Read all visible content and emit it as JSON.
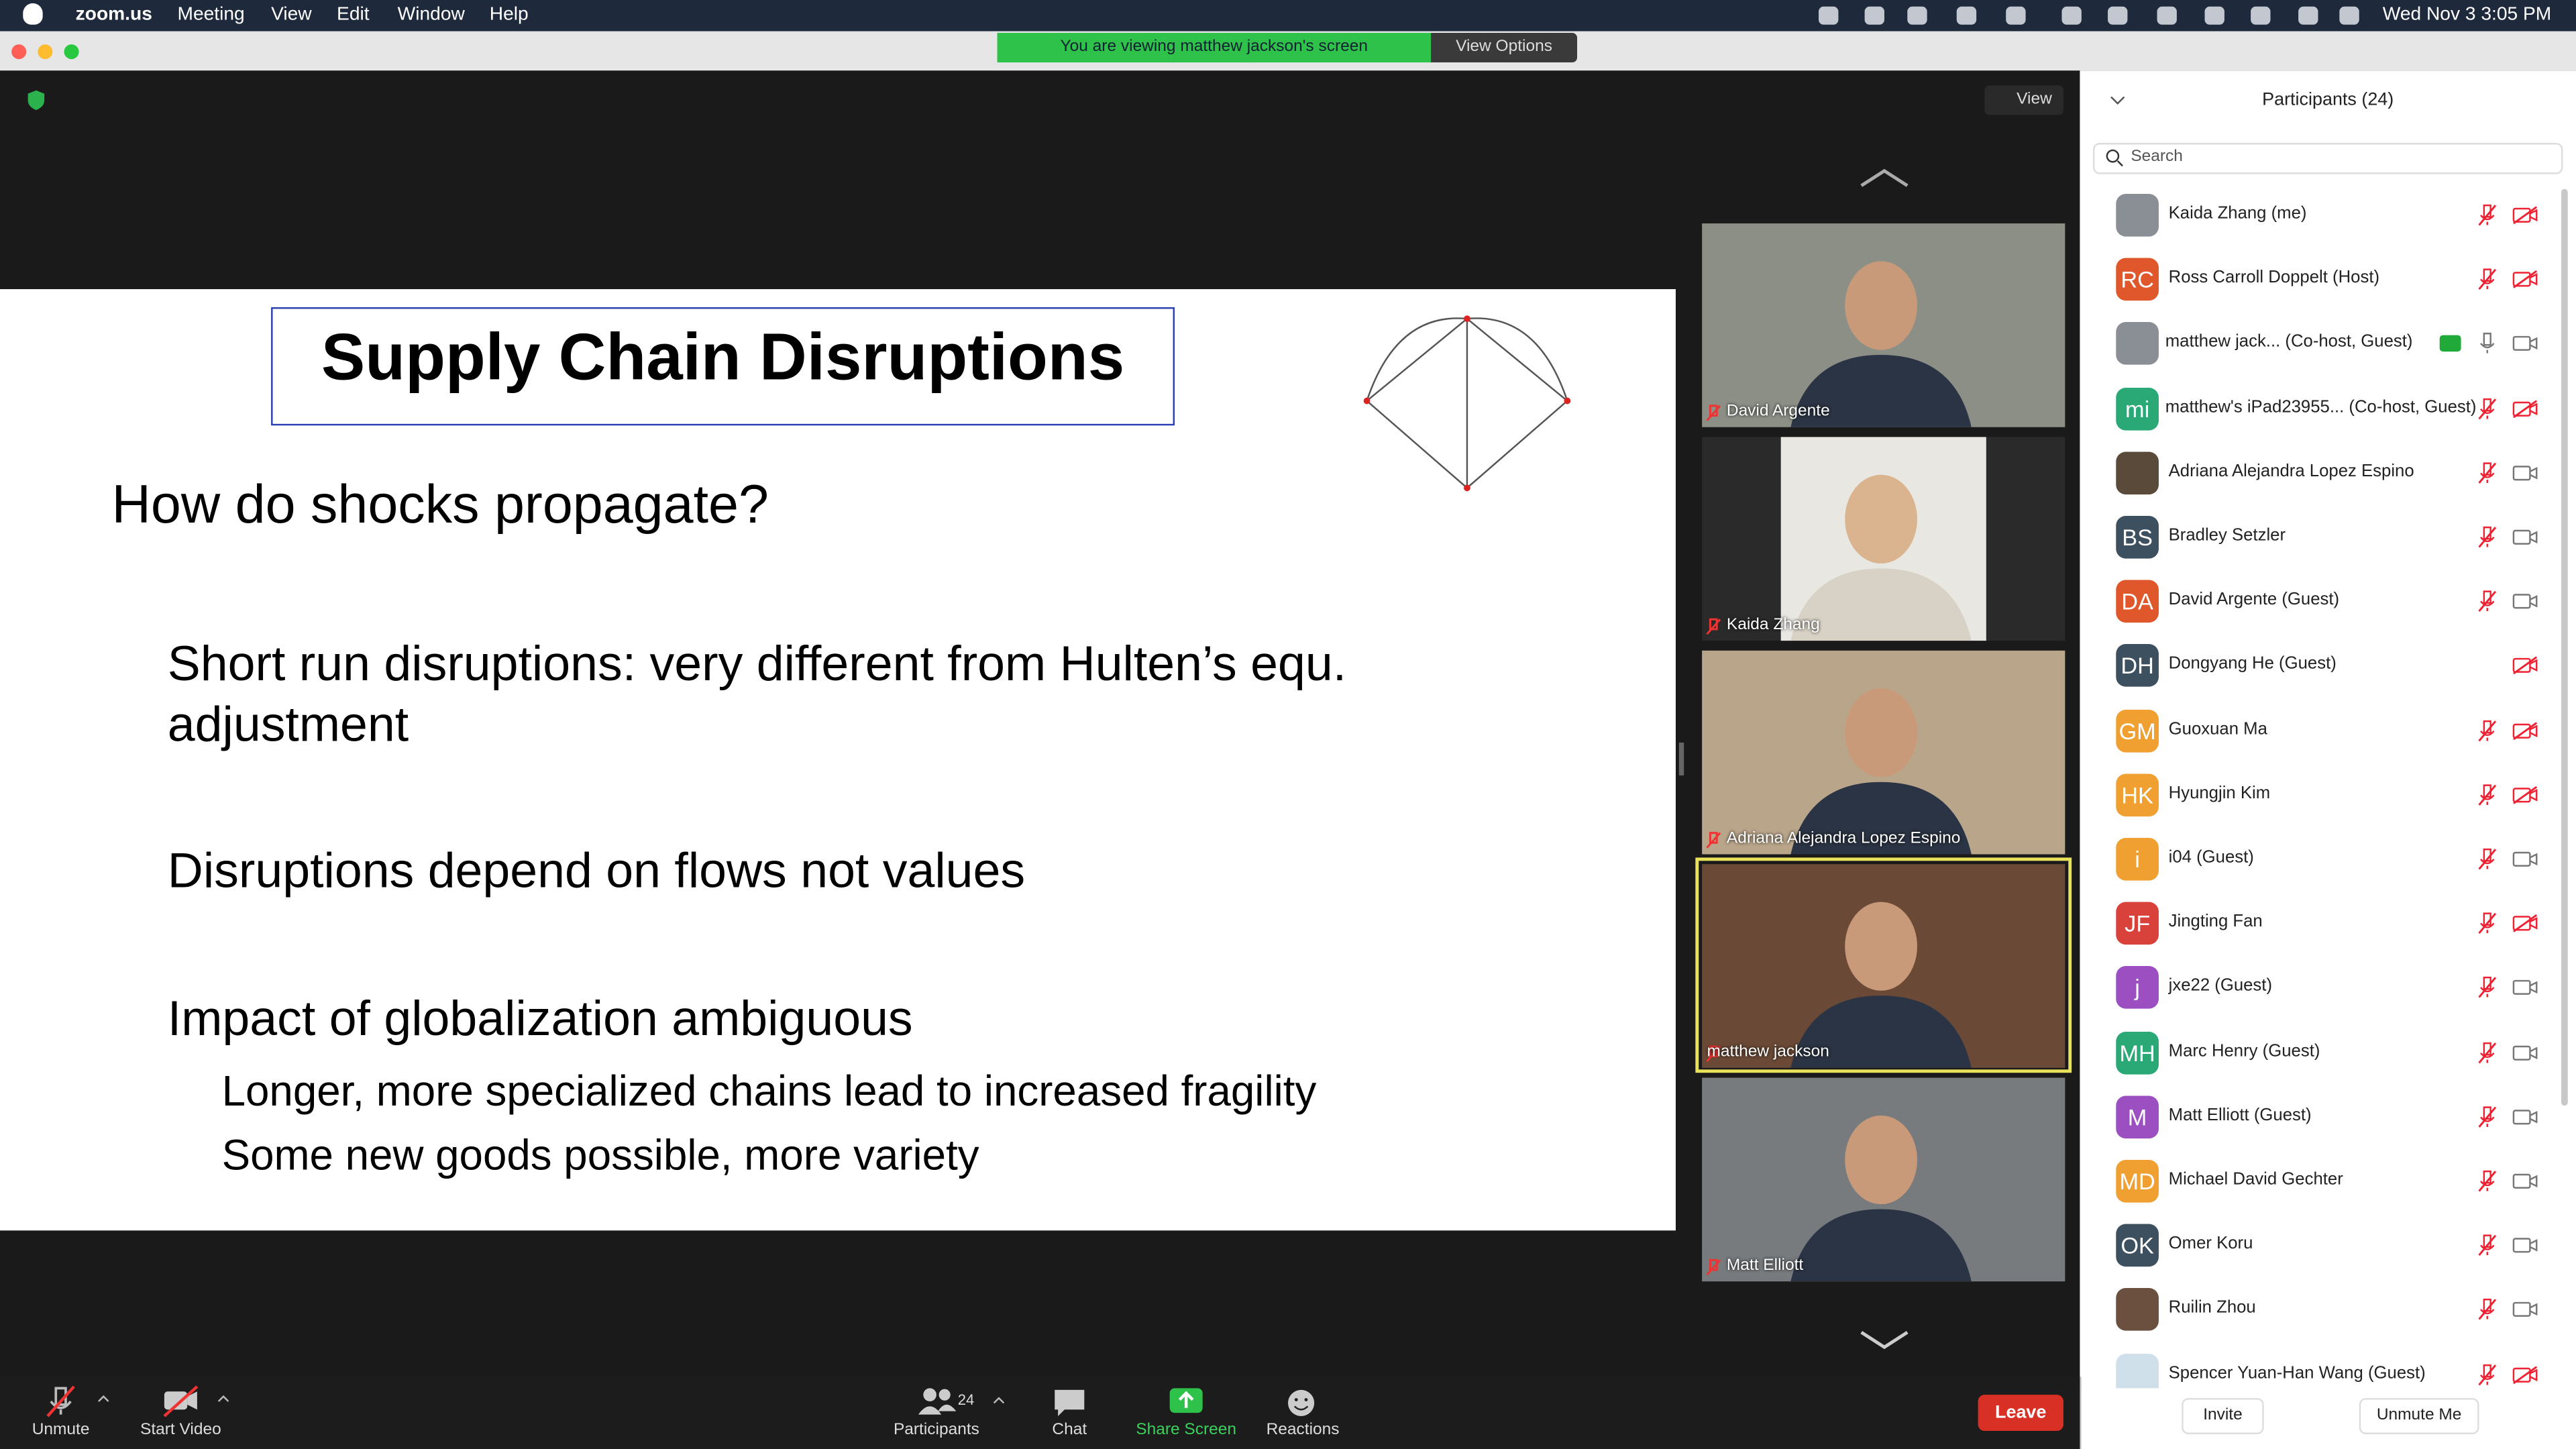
{
  "menubar": {
    "app": "zoom.us",
    "items": [
      "Meeting",
      "View",
      "Edit",
      "Window",
      "Help"
    ],
    "clock": "Wed Nov 3  3:05 PM"
  },
  "banner": {
    "text": "You are viewing matthew jackson's screen",
    "options": "View Options"
  },
  "view_button": "View",
  "slide": {
    "title": "Supply Chain Disruptions",
    "bullets": [
      {
        "level": 1,
        "text": "How do shocks propagate?"
      },
      {
        "level": 2,
        "text": "Short run disruptions:  very different from Hulten’s equ. adjustment"
      },
      {
        "level": 2,
        "text": "Disruptions depend on flows not values"
      },
      {
        "level": 2,
        "text": "Impact of globalization ambiguous"
      },
      {
        "level": 3,
        "text": "Longer, more specialized chains lead to increased fragility"
      },
      {
        "level": 3,
        "text": "Some new goods possible,  more variety"
      }
    ]
  },
  "videos": [
    {
      "name": "David Argente"
    },
    {
      "name": "Kaida Zhang"
    },
    {
      "name": "Adriana Alejandra Lopez Espino"
    },
    {
      "name": "matthew jackson"
    },
    {
      "name": "Matt Elliott"
    }
  ],
  "panel": {
    "title": "Participants (24)",
    "search": "Search",
    "participants": [
      {
        "name": "Kaida Zhang (me)",
        "initials": null,
        "color": "#8a8f96",
        "video_off": true,
        "mic_on": false
      },
      {
        "name": "Ross Carroll Doppelt (Host)",
        "initials": "RC",
        "color": "#e0572b",
        "video_off": true,
        "mic_on": false
      },
      {
        "name": "matthew jack...  (Co-host, Guest)",
        "initials": null,
        "color": "#8a8f96",
        "video_off": false,
        "mic_on": true
      },
      {
        "name": "matthew's iPad23955...  (Co-host, Guest)",
        "initials": "mi",
        "color": "#2aa876",
        "video_off": true,
        "mic_on": false
      },
      {
        "name": "Adriana Alejandra Lopez Espino",
        "initials": null,
        "color": "#5a4a3a",
        "video_off": false,
        "mic_on": false
      },
      {
        "name": "Bradley Setzler",
        "initials": "BS",
        "color": "#3d5060",
        "video_off": false,
        "mic_on": false
      },
      {
        "name": "David Argente (Guest)",
        "initials": "DA",
        "color": "#e0572b",
        "video_off": false,
        "mic_on": false
      },
      {
        "name": "Dongyang He (Guest)",
        "initials": "DH",
        "color": "#3d5060",
        "video_off": true,
        "mic_on": true
      },
      {
        "name": "Guoxuan Ma",
        "initials": "GM",
        "color": "#f0a030",
        "video_off": true,
        "mic_on": false
      },
      {
        "name": "Hyungjin Kim",
        "initials": "HK",
        "color": "#f0a030",
        "video_off": true,
        "mic_on": false
      },
      {
        "name": "i04 (Guest)",
        "initials": "i",
        "color": "#f0a030",
        "video_off": false,
        "mic_on": false
      },
      {
        "name": "Jingting Fan",
        "initials": "JF",
        "color": "#d9423a",
        "video_off": true,
        "mic_on": false
      },
      {
        "name": "jxe22 (Guest)",
        "initials": "j",
        "color": "#9b4fc0",
        "video_off": false,
        "mic_on": false
      },
      {
        "name": "Marc Henry (Guest)",
        "initials": "MH",
        "color": "#2aa876",
        "video_off": false,
        "mic_on": false
      },
      {
        "name": "Matt Elliott (Guest)",
        "initials": "M",
        "color": "#9b4fc0",
        "video_off": false,
        "mic_on": false
      },
      {
        "name": "Michael David Gechter",
        "initials": "MD",
        "color": "#f0a030",
        "video_off": false,
        "mic_on": false
      },
      {
        "name": "Omer Koru",
        "initials": "OK",
        "color": "#3d5060",
        "video_off": false,
        "mic_on": false
      },
      {
        "name": "Ruilin Zhou",
        "initials": null,
        "color": "#6b5040",
        "video_off": false,
        "mic_on": false
      },
      {
        "name": "Spencer Yuan-Han Wang (Guest)",
        "initials": null,
        "color": "#cfe0ea",
        "video_off": true,
        "mic_on": false
      }
    ],
    "buttons": [
      "Invite",
      "Unmute Me"
    ]
  },
  "toolbar": {
    "left": [
      "Unmute",
      "Start Video"
    ],
    "center": [
      "Participants",
      "Chat",
      "Share Screen",
      "Reactions"
    ],
    "count": 24,
    "leave": "Leave"
  }
}
